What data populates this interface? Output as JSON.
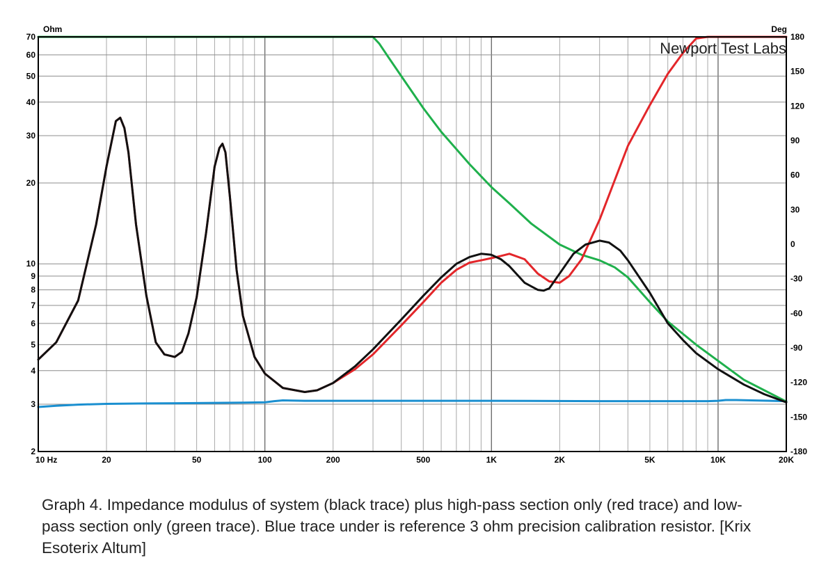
{
  "chart_data": {
    "type": "line",
    "x_scale": "log",
    "xlim": [
      10,
      20000
    ],
    "y_left": {
      "scale": "log",
      "range": [
        2,
        70
      ],
      "unit_label": "Ohm",
      "ticks": [
        {
          "v": 70,
          "label": "70"
        },
        {
          "v": 60,
          "label": "60"
        },
        {
          "v": 50,
          "label": "50"
        },
        {
          "v": 40,
          "label": "40"
        },
        {
          "v": 30,
          "label": "30"
        },
        {
          "v": 20,
          "label": "20"
        },
        {
          "v": 10,
          "label": "10"
        },
        {
          "v": 9,
          "label": "9"
        },
        {
          "v": 8,
          "label": "8"
        },
        {
          "v": 7,
          "label": "7"
        },
        {
          "v": 6,
          "label": "6"
        },
        {
          "v": 5,
          "label": "5"
        },
        {
          "v": 4,
          "label": "4"
        },
        {
          "v": 3,
          "label": "3"
        },
        {
          "v": 2,
          "label": "2"
        }
      ]
    },
    "y_right": {
      "scale": "linear",
      "range": [
        -180,
        180
      ],
      "unit_label": "Deg",
      "ticks": [
        {
          "v": 180,
          "label": "180"
        },
        {
          "v": 150,
          "label": "150"
        },
        {
          "v": 120,
          "label": "120"
        },
        {
          "v": 90,
          "label": "90"
        },
        {
          "v": 60,
          "label": "60"
        },
        {
          "v": 30,
          "label": "30"
        },
        {
          "v": 0,
          "label": "0"
        },
        {
          "v": -30,
          "label": "-30"
        },
        {
          "v": -60,
          "label": "-60"
        },
        {
          "v": -90,
          "label": "-90"
        },
        {
          "v": -120,
          "label": "-120"
        },
        {
          "v": -150,
          "label": "-150"
        },
        {
          "v": -180,
          "label": "-180"
        }
      ]
    },
    "x_ticks": [
      {
        "v": 10,
        "label": "10  Hz"
      },
      {
        "v": 20,
        "label": "20"
      },
      {
        "v": 50,
        "label": "50"
      },
      {
        "v": 100,
        "label": "100"
      },
      {
        "v": 200,
        "label": "200"
      },
      {
        "v": 500,
        "label": "500"
      },
      {
        "v": 1000,
        "label": "1K"
      },
      {
        "v": 2000,
        "label": "2K"
      },
      {
        "v": 5000,
        "label": "5K"
      },
      {
        "v": 10000,
        "label": "10K"
      },
      {
        "v": 20000,
        "label": "20K"
      }
    ],
    "grid": true,
    "watermark": "Newport Test Labs",
    "series": [
      {
        "key": "reference",
        "color": "#1a8fd0",
        "x": [
          10,
          12,
          15,
          20,
          30,
          50,
          80,
          100,
          110,
          120,
          150,
          300,
          1000,
          3000,
          9000,
          10000,
          10800,
          12000,
          20000
        ],
        "y": [
          2.93,
          2.96,
          2.99,
          3.01,
          3.02,
          3.03,
          3.04,
          3.05,
          3.08,
          3.1,
          3.09,
          3.09,
          3.09,
          3.08,
          3.08,
          3.09,
          3.11,
          3.11,
          3.08
        ]
      },
      {
        "key": "low-pass",
        "color": "#1fb04c",
        "x": [
          10,
          300,
          320,
          350,
          400,
          500,
          600,
          800,
          1000,
          1200,
          1500,
          2000,
          2500,
          3000,
          3500,
          4000,
          5000,
          6000,
          8000,
          10000,
          13000,
          16000,
          20000
        ],
        "y": [
          70,
          70,
          66,
          59,
          50,
          38,
          31,
          23.5,
          19.3,
          16.8,
          14.1,
          11.8,
          10.8,
          10.3,
          9.7,
          8.9,
          7.2,
          6.1,
          5,
          4.35,
          3.7,
          3.38,
          3.07
        ]
      },
      {
        "key": "high-pass",
        "color": "#e3262a",
        "x": [
          10,
          12,
          15,
          18,
          20,
          22,
          23,
          24,
          25,
          27,
          30,
          33,
          36,
          40,
          43,
          46,
          50,
          55,
          60,
          63,
          65,
          67,
          70,
          75,
          80,
          90,
          100,
          120,
          150,
          170,
          200,
          250,
          300,
          400,
          500,
          600,
          700,
          800,
          900,
          1000,
          1100,
          1200,
          1400,
          1600,
          1800,
          2000,
          2200,
          2500,
          3000,
          3500,
          4000,
          5000,
          6000,
          7000,
          8000,
          9000,
          10000,
          11000,
          20000
        ],
        "y": [
          4.4,
          5.1,
          7.3,
          14,
          23,
          34,
          35,
          32,
          26,
          14,
          7.6,
          5.1,
          4.6,
          4.5,
          4.7,
          5.5,
          7.5,
          13,
          23,
          27,
          28,
          26,
          18,
          9.5,
          6.4,
          4.5,
          3.9,
          3.45,
          3.33,
          3.38,
          3.6,
          4.05,
          4.6,
          5.9,
          7.2,
          8.5,
          9.5,
          10.1,
          10.3,
          10.5,
          10.7,
          10.9,
          10.4,
          9.2,
          8.6,
          8.5,
          9,
          10.4,
          14.6,
          20.5,
          27.5,
          39,
          51,
          61,
          69,
          70,
          70,
          70,
          70
        ]
      },
      {
        "key": "system",
        "color": "#111111",
        "x": [
          10,
          12,
          15,
          18,
          20,
          22,
          23,
          24,
          25,
          27,
          30,
          33,
          36,
          40,
          43,
          46,
          50,
          55,
          60,
          63,
          65,
          67,
          70,
          75,
          80,
          90,
          100,
          120,
          150,
          170,
          200,
          250,
          300,
          400,
          500,
          600,
          700,
          800,
          900,
          1000,
          1100,
          1200,
          1400,
          1600,
          1700,
          1800,
          2000,
          2300,
          2600,
          3000,
          3300,
          3700,
          4000,
          5000,
          6000,
          7000,
          8000,
          10000,
          13000,
          16000,
          20000
        ],
        "y": [
          4.4,
          5.1,
          7.3,
          14,
          23,
          34,
          35,
          32,
          26,
          14,
          7.6,
          5.1,
          4.6,
          4.5,
          4.7,
          5.5,
          7.5,
          13,
          23,
          27,
          28,
          26,
          18,
          9.5,
          6.4,
          4.5,
          3.9,
          3.45,
          3.33,
          3.38,
          3.6,
          4.15,
          4.8,
          6.2,
          7.6,
          8.9,
          10,
          10.6,
          10.9,
          10.8,
          10.4,
          9.8,
          8.5,
          8.0,
          7.95,
          8.1,
          9.2,
          10.9,
          11.8,
          12.2,
          12,
          11.2,
          10.3,
          7.8,
          6,
          5.2,
          4.65,
          4.05,
          3.55,
          3.27,
          3.05
        ]
      }
    ]
  },
  "caption": "Graph 4. Impedance modulus of system (black trace) plus high-pass section only (red trace) and low-pass section only (green trace). Blue trace under is reference 3 ohm precision calibration resistor. [Krix Esoterix Altum]"
}
